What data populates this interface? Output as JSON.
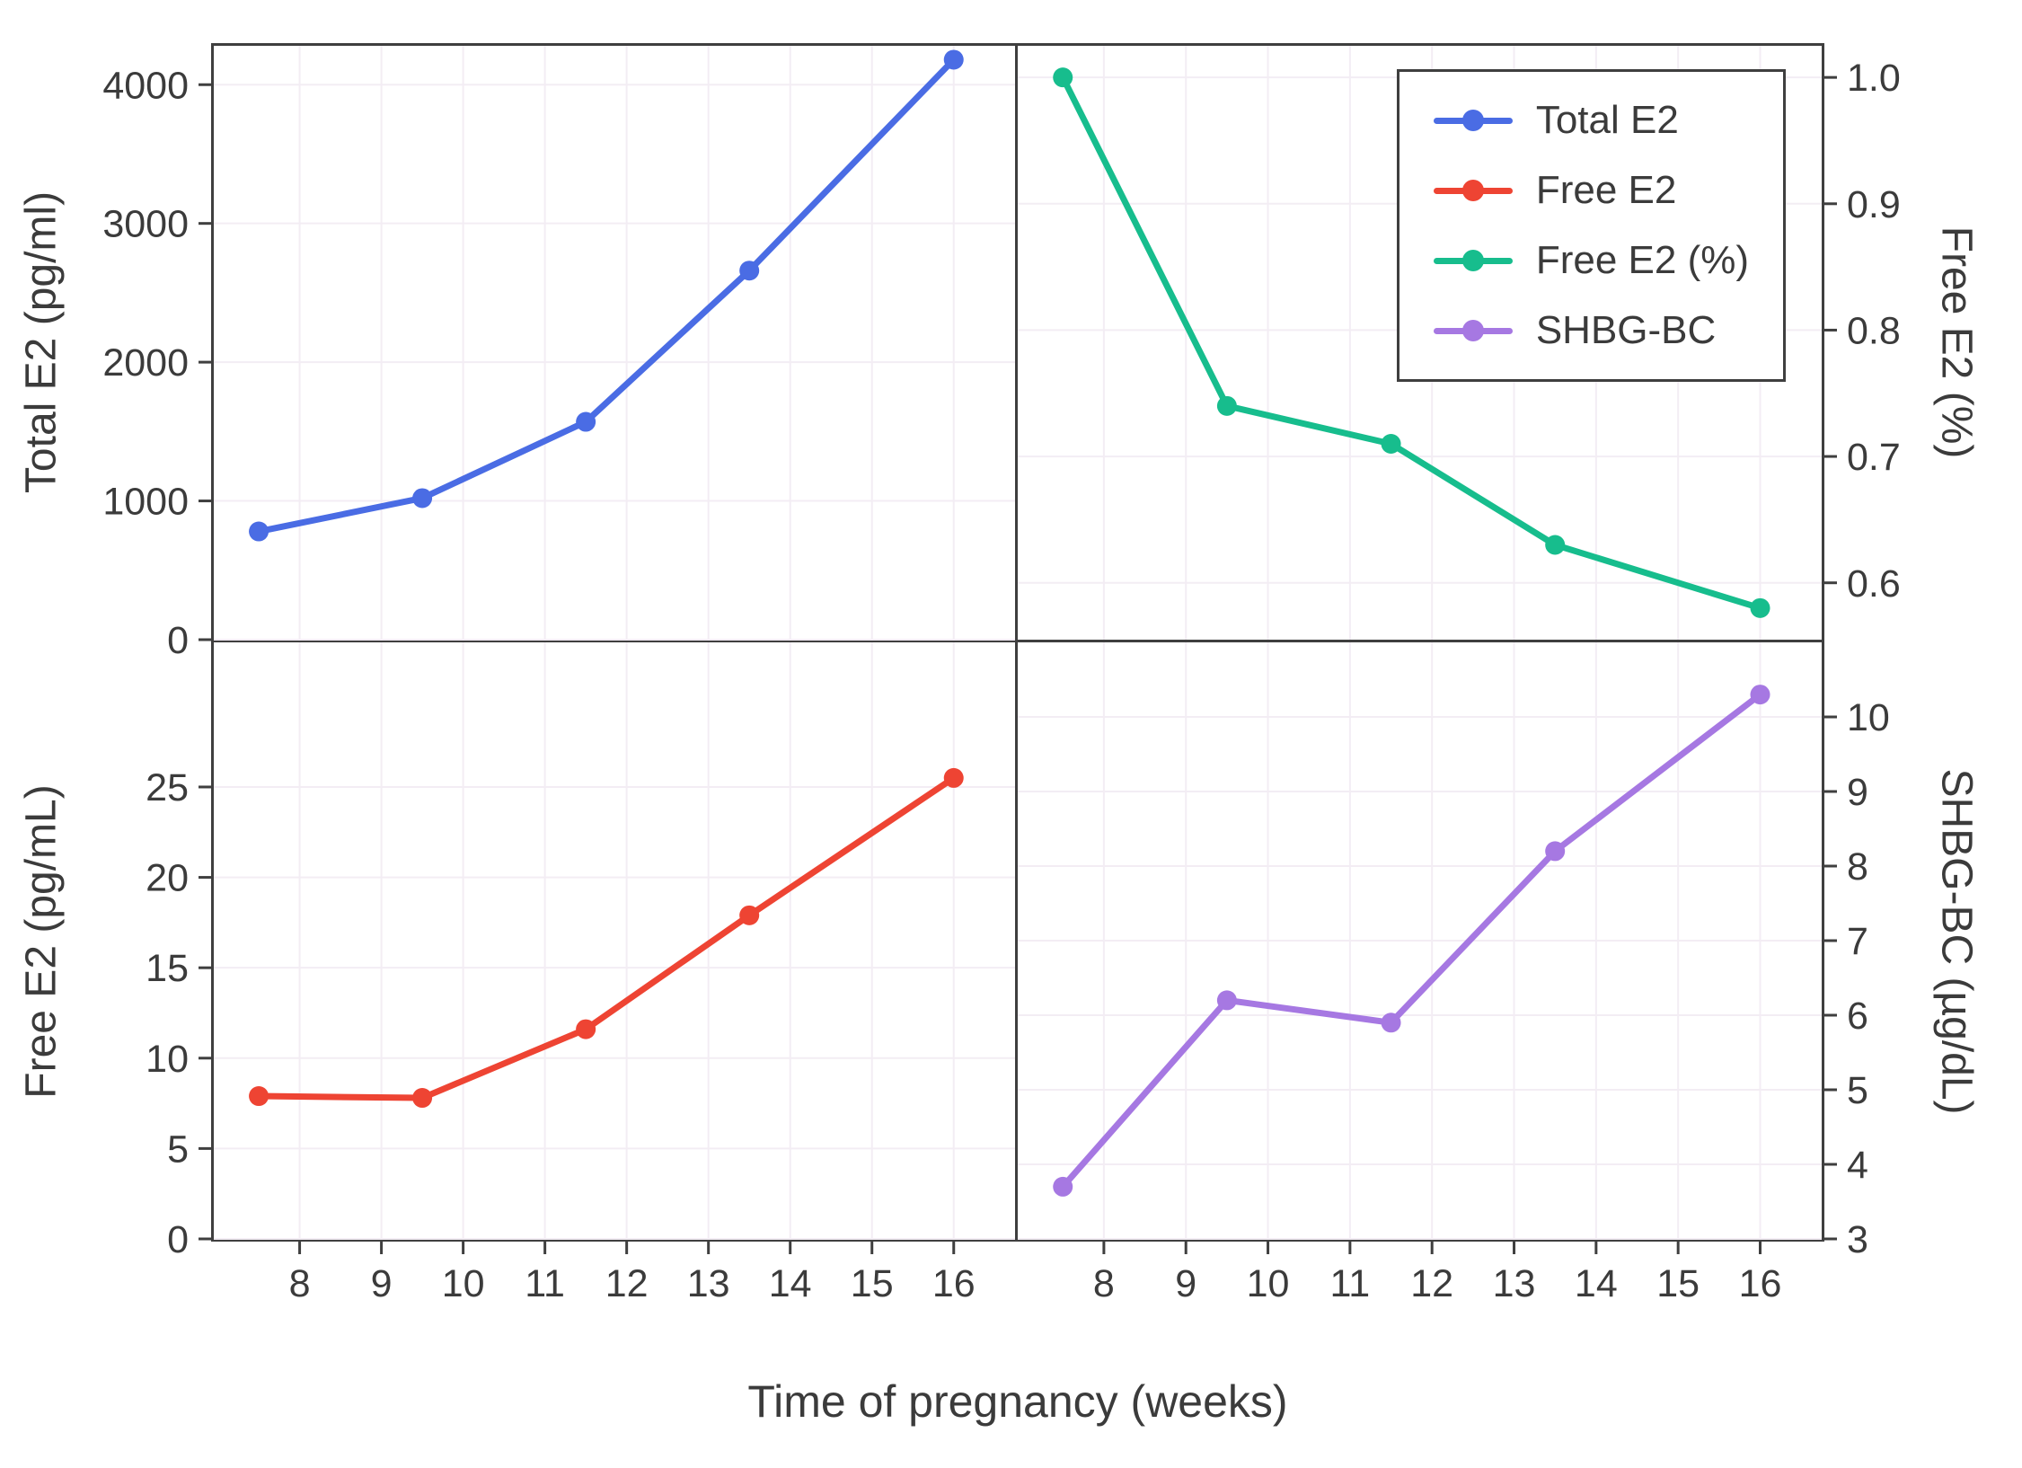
{
  "legend": {
    "items": [
      {
        "label": "Total E2",
        "color": "#4a6ce4"
      },
      {
        "label": "Free E2",
        "color": "#ee4433"
      },
      {
        "label": "Free E2 (%)",
        "color": "#17bd8d"
      },
      {
        "label": "SHBG-BC",
        "color": "#a678e2"
      }
    ]
  },
  "chart_data": {
    "type": "line",
    "xlabel": "Time of pregnancy (weeks)",
    "x": [
      7.5,
      9.5,
      11.5,
      13.5,
      16
    ],
    "xticks": [
      8,
      9,
      10,
      11,
      12,
      13,
      14,
      15,
      16
    ],
    "xlim": [
      6.95,
      16.75
    ],
    "grid": true,
    "grid_color": "#f3edf4",
    "axis_color": "#3f3f3f",
    "legend_position": "top-right-panel",
    "panels": [
      {
        "position": "tl",
        "name": "Total E2",
        "ylabel": "Total E2 (pg/ml)",
        "color": "#4a6ce4",
        "values": [
          780,
          1020,
          1570,
          2660,
          4180
        ],
        "ylim": [
          0,
          4280
        ],
        "yticks": [
          0,
          1000,
          2000,
          3000,
          4000
        ],
        "ytick_labels": [
          "0",
          "1000",
          "2000",
          "3000",
          "4000"
        ],
        "yside": "left",
        "show_xticks": false
      },
      {
        "position": "tr",
        "name": "Free E2 (%)",
        "ylabel": "Free E2 (%)",
        "color": "#17bd8d",
        "values": [
          1.0,
          0.74,
          0.71,
          0.63,
          0.58
        ],
        "ylim": [
          0.555,
          1.025
        ],
        "yticks": [
          0.6,
          0.7,
          0.8,
          0.9,
          1.0
        ],
        "ytick_labels": [
          "0.6",
          "0.7",
          "0.8",
          "0.9",
          "1.0"
        ],
        "yside": "right",
        "show_xticks": false
      },
      {
        "position": "bl",
        "name": "Free E2",
        "ylabel": "Free E2 (pg/mL)",
        "color": "#ee4433",
        "values": [
          7.9,
          7.8,
          11.6,
          17.9,
          25.5
        ],
        "ylim": [
          0,
          33
        ],
        "yticks": [
          0,
          5,
          10,
          15,
          20,
          25
        ],
        "ytick_labels": [
          "0",
          "5",
          "10",
          "15",
          "20",
          "25"
        ],
        "yside": "left",
        "show_xticks": true
      },
      {
        "position": "br",
        "name": "SHBG-BC",
        "ylabel": "SHBG-BC (µg/dL)",
        "color": "#a678e2",
        "values": [
          3.7,
          6.2,
          5.9,
          8.2,
          10.3
        ],
        "ylim": [
          3,
          11
        ],
        "yticks": [
          3,
          4,
          5,
          6,
          7,
          8,
          9,
          10
        ],
        "ytick_labels": [
          "3",
          "4",
          "5",
          "6",
          "7",
          "8",
          "9",
          "10"
        ],
        "yside": "right",
        "show_xticks": true
      }
    ]
  }
}
